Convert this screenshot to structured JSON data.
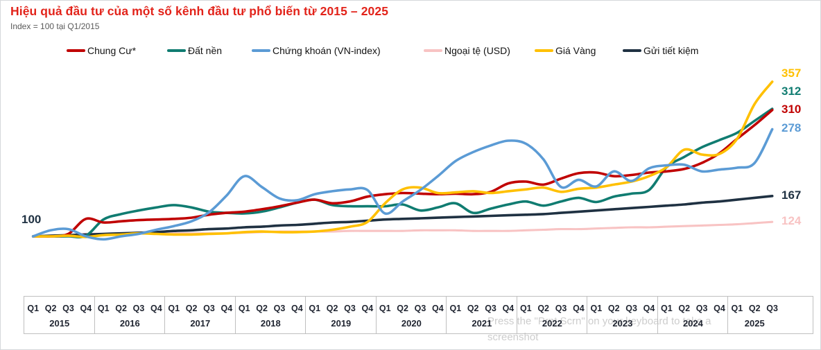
{
  "header": {
    "title": "Hiệu quả đầu tư của một số kênh đầu tư phổ biến từ 2015 – 2025",
    "subtitle": "Index = 100 tại Q1/2015"
  },
  "baseline_label": "100",
  "watermark": {
    "line1": "Press the \"Prnt Scrn\" on your keyboard to take a",
    "line2": "screenshot"
  },
  "axis": {
    "years": [
      {
        "year": "2015",
        "quarters": [
          "Q1",
          "Q2",
          "Q3",
          "Q4"
        ]
      },
      {
        "year": "2016",
        "quarters": [
          "Q1",
          "Q2",
          "Q3",
          "Q4"
        ]
      },
      {
        "year": "2017",
        "quarters": [
          "Q1",
          "Q2",
          "Q3",
          "Q4"
        ]
      },
      {
        "year": "2018",
        "quarters": [
          "Q1",
          "Q2",
          "Q3",
          "Q4"
        ]
      },
      {
        "year": "2019",
        "quarters": [
          "Q1",
          "Q2",
          "Q3",
          "Q4"
        ]
      },
      {
        "year": "2020",
        "quarters": [
          "Q1",
          "Q2",
          "Q3",
          "Q4"
        ]
      },
      {
        "year": "2021",
        "quarters": [
          "Q1",
          "Q2",
          "Q3",
          "Q4"
        ]
      },
      {
        "year": "2022",
        "quarters": [
          "Q1",
          "Q2",
          "Q3",
          "Q4"
        ]
      },
      {
        "year": "2023",
        "quarters": [
          "Q1",
          "Q2",
          "Q3",
          "Q4"
        ]
      },
      {
        "year": "2024",
        "quarters": [
          "Q1",
          "Q2",
          "Q3",
          "Q4"
        ]
      },
      {
        "year": "2025",
        "quarters": [
          "Q1",
          "Q2",
          "Q3"
        ]
      }
    ]
  },
  "chart_data": {
    "type": "line",
    "title": "Hiệu quả đầu tư của một số kênh đầu tư phổ biến từ 2015 – 2025",
    "index_base": "Index = 100 tại Q1/2015",
    "x_unit": "quarter",
    "x_start": "2015-Q1",
    "x_end": "2025-Q3",
    "ylim": [
      90,
      370
    ],
    "grid": false,
    "legend_position": "top",
    "series": [
      {
        "name": "Chung Cư*",
        "color": "#C00000",
        "end_label": 310,
        "values": [
          100,
          100,
          104,
          129,
          123,
          125,
          127,
          128,
          129,
          131,
          136,
          139,
          141,
          145,
          150,
          156,
          161,
          155,
          158,
          166,
          170,
          172,
          171,
          170,
          171,
          170,
          174,
          188,
          191,
          186,
          196,
          205,
          206,
          200,
          202,
          206,
          208,
          212,
          222,
          238,
          262,
          285,
          310
        ]
      },
      {
        "name": "Đất nền",
        "color": "#107C71",
        "end_label": 312,
        "values": [
          100,
          100,
          100,
          101,
          128,
          137,
          143,
          148,
          152,
          148,
          141,
          139,
          138,
          141,
          148,
          156,
          161,
          152,
          150,
          150,
          150,
          153,
          143,
          148,
          155,
          139,
          146,
          153,
          158,
          151,
          158,
          164,
          157,
          166,
          171,
          177,
          215,
          232,
          248,
          260,
          272,
          292,
          312
        ]
      },
      {
        "name": "Chứng khoán (VN-index)",
        "color": "#5B9BD5",
        "end_label": 278,
        "values": [
          100,
          110,
          112,
          100,
          95,
          100,
          104,
          111,
          117,
          125,
          140,
          168,
          200,
          182,
          163,
          160,
          170,
          175,
          178,
          177,
          138,
          158,
          177,
          200,
          225,
          240,
          251,
          259,
          254,
          228,
          182,
          194,
          183,
          208,
          192,
          213,
          218,
          219,
          208,
          211,
          214,
          222,
          278
        ]
      },
      {
        "name": "Ngoại tệ (USD)",
        "color": "#F8C3C3",
        "end_label": 124,
        "values": [
          100,
          101,
          102,
          104,
          104,
          104,
          105,
          105,
          105,
          105,
          105,
          105,
          106,
          107,
          108,
          108,
          108,
          108,
          109,
          109,
          109,
          109,
          110,
          110,
          110,
          109,
          109,
          109,
          110,
          111,
          112,
          112,
          113,
          114,
          115,
          115,
          116,
          117,
          118,
          119,
          120,
          122,
          124
        ]
      },
      {
        "name": "Giá Vàng",
        "color": "#FFC000",
        "end_label": 357,
        "values": [
          100,
          100,
          101,
          99,
          102,
          103,
          105,
          104,
          103,
          103,
          104,
          105,
          107,
          108,
          107,
          107,
          108,
          111,
          116,
          124,
          155,
          178,
          181,
          172,
          173,
          175,
          172,
          175,
          178,
          181,
          174,
          179,
          181,
          186,
          191,
          200,
          215,
          244,
          236,
          237,
          262,
          320,
          357
        ]
      },
      {
        "name": "Gửi tiết kiệm",
        "color": "#1F3142",
        "end_label": 167,
        "values": [
          100,
          101,
          102,
          103,
          104,
          105,
          106,
          107,
          109,
          110,
          112,
          113,
          115,
          116,
          118,
          119,
          121,
          123,
          124,
          126,
          128,
          129,
          130,
          131,
          132,
          133,
          134,
          135,
          136,
          137,
          139,
          141,
          143,
          145,
          147,
          149,
          151,
          153,
          156,
          158,
          161,
          164,
          167
        ]
      }
    ]
  }
}
